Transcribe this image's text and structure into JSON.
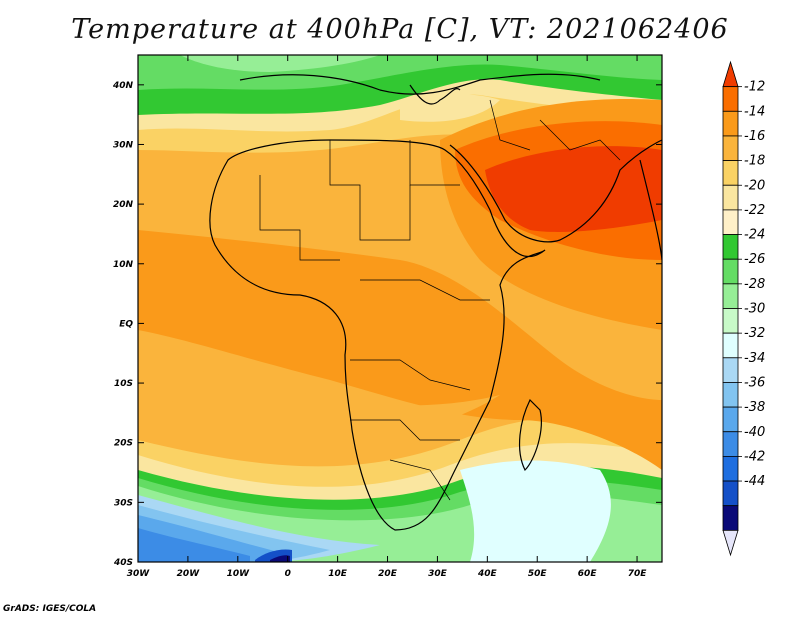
{
  "title": "Temperature at 400hPa [C], VT: 2021062406",
  "credit": "GrADS: IGES/COLA",
  "map": {
    "lon_range": [
      -30,
      75
    ],
    "lat_range": [
      -40,
      45
    ],
    "lon_ticks": [
      {
        "value": -30,
        "label": "30W"
      },
      {
        "value": -20,
        "label": "20W"
      },
      {
        "value": -10,
        "label": "10W"
      },
      {
        "value": 0,
        "label": "0"
      },
      {
        "value": 10,
        "label": "10E"
      },
      {
        "value": 20,
        "label": "20E"
      },
      {
        "value": 30,
        "label": "30E"
      },
      {
        "value": 40,
        "label": "40E"
      },
      {
        "value": 50,
        "label": "50E"
      },
      {
        "value": 60,
        "label": "60E"
      },
      {
        "value": 70,
        "label": "70E"
      }
    ],
    "lat_ticks": [
      {
        "value": 40,
        "label": "40N"
      },
      {
        "value": 30,
        "label": "30N"
      },
      {
        "value": 20,
        "label": "20N"
      },
      {
        "value": 10,
        "label": "10N"
      },
      {
        "value": 0,
        "label": "EQ"
      },
      {
        "value": -10,
        "label": "10S"
      },
      {
        "value": -20,
        "label": "20S"
      },
      {
        "value": -30,
        "label": "30S"
      },
      {
        "value": -40,
        "label": "40S"
      }
    ]
  },
  "colorbar": {
    "levels": [
      "-12",
      "-14",
      "-16",
      "-18",
      "-20",
      "-22",
      "-24",
      "-26",
      "-28",
      "-30",
      "-32",
      "-34",
      "-36",
      "-38",
      "-40",
      "-42",
      "-44"
    ],
    "colors": [
      "#f03c00",
      "#fa6e00",
      "#fa9a1a",
      "#fab43c",
      "#fad264",
      "#fae6a0",
      "#fff0c8",
      "#32c832",
      "#64dc64",
      "#96ee96",
      "#c8fac8",
      "#e0ffff",
      "#aad8f4",
      "#82c4f0",
      "#5aa8ec",
      "#3c8ce6",
      "#1e6ee0",
      "#1450c8",
      "#0a0a78",
      "#e6e6fa"
    ]
  }
}
